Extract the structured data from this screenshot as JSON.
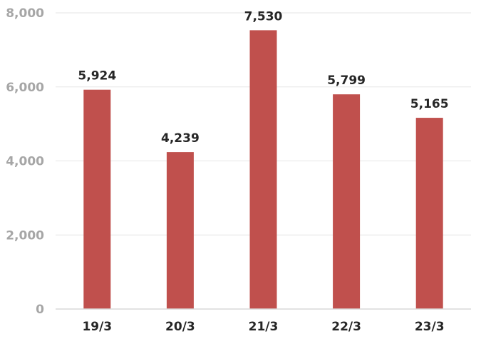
{
  "chart_data": {
    "type": "bar",
    "categories": [
      "19/3",
      "20/3",
      "21/3",
      "22/3",
      "23/3"
    ],
    "values": [
      5924,
      4239,
      7530,
      5799,
      5165
    ],
    "data_labels": [
      "5,924",
      "4,239",
      "7,530",
      "5,799",
      "5,165"
    ],
    "y_tick_labels": [
      "0",
      "2,000",
      "4,000",
      "6,000",
      "8,000"
    ],
    "y_ticks": [
      0,
      2000,
      4000,
      6000,
      8000
    ],
    "ylim": [
      0,
      8000
    ],
    "grid": true,
    "legend": false,
    "title": "",
    "xlabel": "",
    "ylabel": "",
    "colors": {
      "bar": "#c0504d",
      "grid": "#e6e6e6",
      "axis": "#d9d9d9",
      "tick_text": "#a6a6a6",
      "label_text": "#262626"
    }
  }
}
